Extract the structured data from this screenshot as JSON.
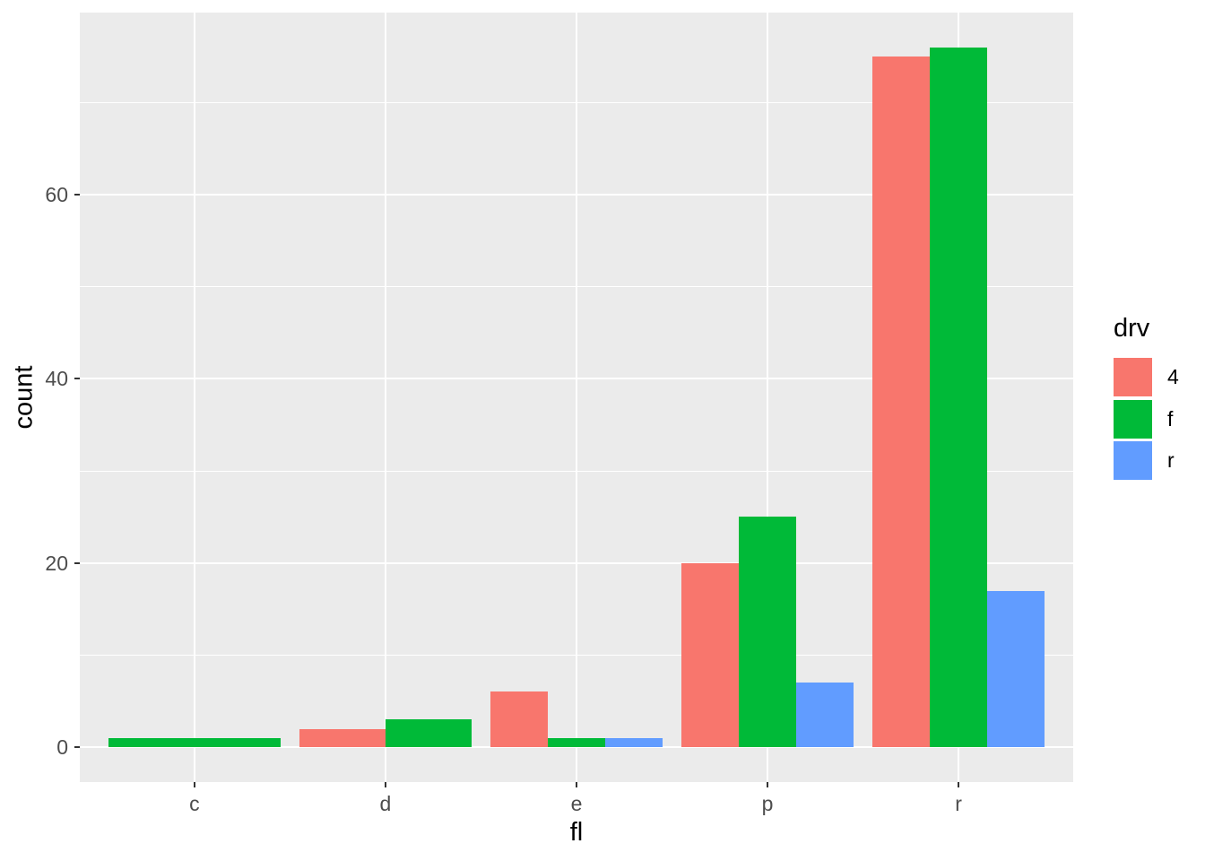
{
  "chart_data": {
    "type": "bar",
    "mode": "grouped-dodge",
    "title": "",
    "xlabel": "fl",
    "ylabel": "count",
    "categories": [
      "c",
      "d",
      "e",
      "p",
      "r"
    ],
    "series": [
      {
        "name": "4",
        "color": "#F8766D",
        "values": [
          null,
          2,
          6,
          20,
          75
        ]
      },
      {
        "name": "f",
        "color": "#00BA38",
        "values": [
          1,
          3,
          1,
          25,
          76
        ]
      },
      {
        "name": "r",
        "color": "#619CFF",
        "values": [
          null,
          null,
          1,
          7,
          17
        ]
      }
    ],
    "y_major_ticks": [
      0,
      20,
      40,
      60
    ],
    "y_minor_ticks": [
      10,
      30,
      50,
      70
    ],
    "ylim": [
      -3.8,
      79.8
    ],
    "legend": {
      "title": "drv",
      "position": "right"
    },
    "grid": "major+minor, white on grey panel",
    "style": {
      "panel_bg": "#EBEBEB",
      "grid_color": "#FFFFFF",
      "tick_color": "#333333",
      "tick_label_color": "#4D4D4D",
      "axis_title_color": "#000000",
      "figure_bg": "#FFFFFF"
    }
  }
}
